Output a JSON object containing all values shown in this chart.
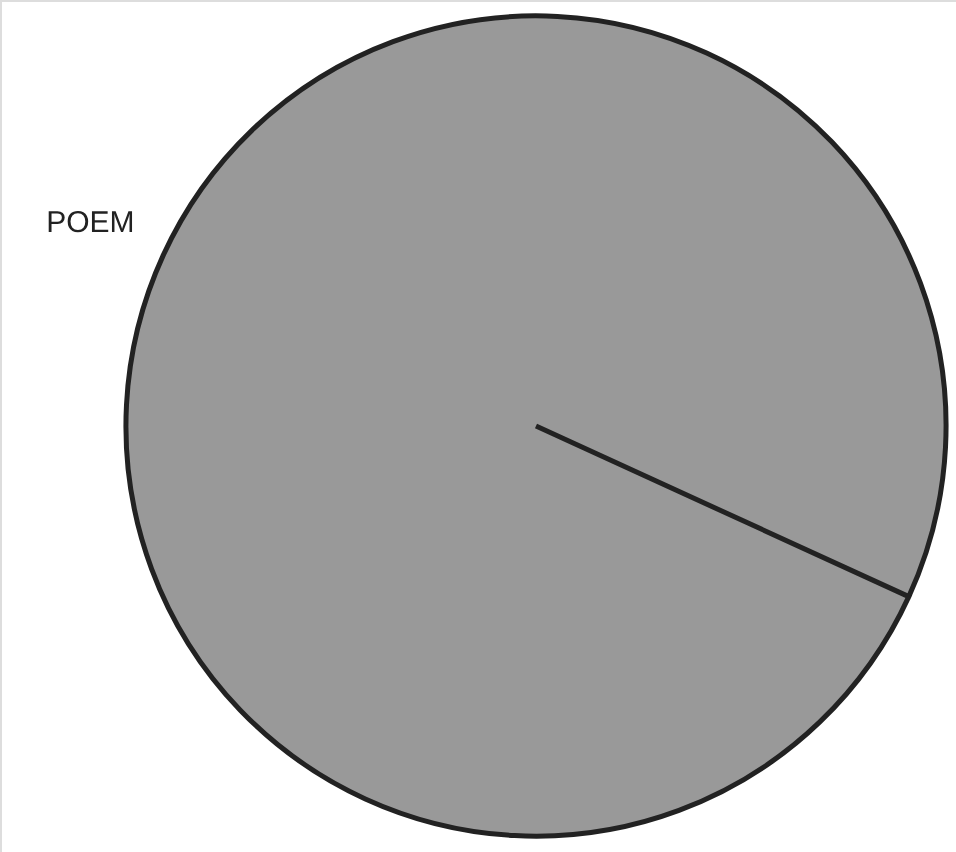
{
  "chart_data": {
    "type": "pie",
    "categories": [
      "POEM"
    ],
    "values": [
      100
    ],
    "colors": [
      "#999999"
    ]
  }
}
